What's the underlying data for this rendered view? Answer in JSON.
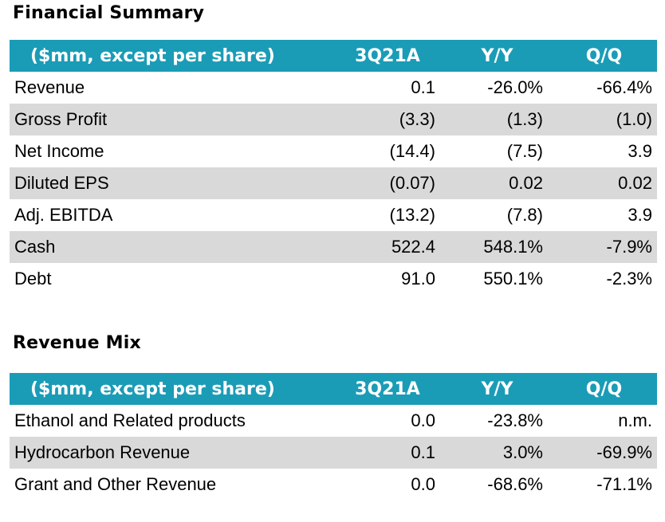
{
  "financial_summary": {
    "title": "Financial Summary",
    "headers": [
      "($mm, except per share)",
      "3Q21A",
      "Y/Y",
      "Q/Q"
    ],
    "rows": [
      [
        "Revenue",
        "0.1",
        "-26.0%",
        "-66.4%"
      ],
      [
        "Gross Profit",
        "(3.3)",
        "(1.3)",
        "(1.0)"
      ],
      [
        "Net Income",
        "(14.4)",
        "(7.5)",
        "3.9"
      ],
      [
        "Diluted EPS",
        "(0.07)",
        "0.02",
        "0.02"
      ],
      [
        "Adj. EBITDA",
        "(13.2)",
        "(7.8)",
        "3.9"
      ],
      [
        "Cash",
        "522.4",
        "548.1%",
        "-7.9%"
      ],
      [
        "Debt",
        "91.0",
        "550.1%",
        "-2.3%"
      ]
    ]
  },
  "revenue_mix": {
    "title": "Revenue Mix",
    "headers": [
      "($mm, except per share)",
      "3Q21A",
      "Y/Y",
      "Q/Q"
    ],
    "rows": [
      [
        "Ethanol and Related products",
        "0.0",
        "-23.8%",
        "n.m."
      ],
      [
        "Hydrocarbon Revenue",
        "0.1",
        "3.0%",
        "-69.9%"
      ],
      [
        "Grant and Other Revenue",
        "0.0",
        "-68.6%",
        "-71.1%"
      ]
    ]
  },
  "colors": {
    "header_bg": "#1a9cb7",
    "shaded_row_bg": "#d9d9d9"
  }
}
